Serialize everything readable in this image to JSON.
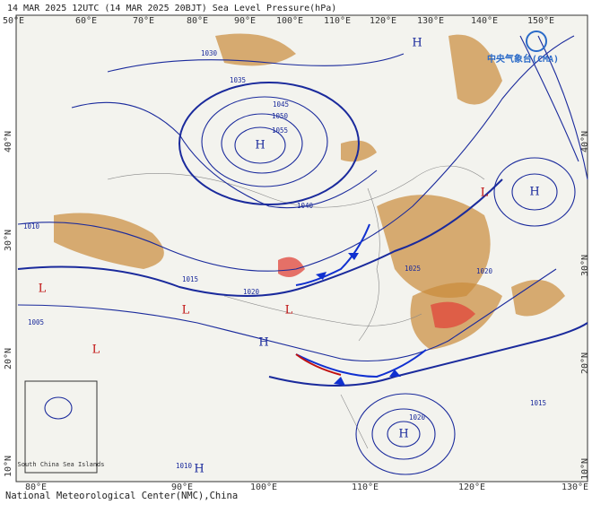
{
  "header": {
    "title": "14 MAR 2025 12UTC (14 MAR 2025 20BJT) Sea Level Pressure(hPa)"
  },
  "logo": "中央气象台(CMA)",
  "top_lon_labels": [
    "50°E",
    "60°E",
    "70°E",
    "80°E",
    "90°E",
    "100°E",
    "110°E",
    "120°E",
    "130°E",
    "140°E",
    "150°E"
  ],
  "bottom_lon_labels": [
    "80°E",
    "90°E",
    "100°E",
    "110°E",
    "120°E",
    "130°E"
  ],
  "left_lat_labels": [
    "40°N",
    "30°N",
    "20°N",
    "10°N"
  ],
  "right_lat_labels": [
    "40°N",
    "30°N",
    "20°N",
    "10°N"
  ],
  "pressure_centers": [
    "H",
    "H",
    "H",
    "H",
    "H",
    "H",
    "L",
    "L",
    "L",
    "L",
    "L"
  ],
  "isobar_labels": [
    "1030",
    "1035",
    "1045",
    "1050",
    "1055",
    "1040",
    "1025",
    "1020",
    "1015",
    "1010",
    "1005",
    "1020",
    "1015",
    "1020",
    "1010"
  ],
  "inset_label": "South China Sea Islands",
  "footer": "National Meteorological Center(NMC),China"
}
